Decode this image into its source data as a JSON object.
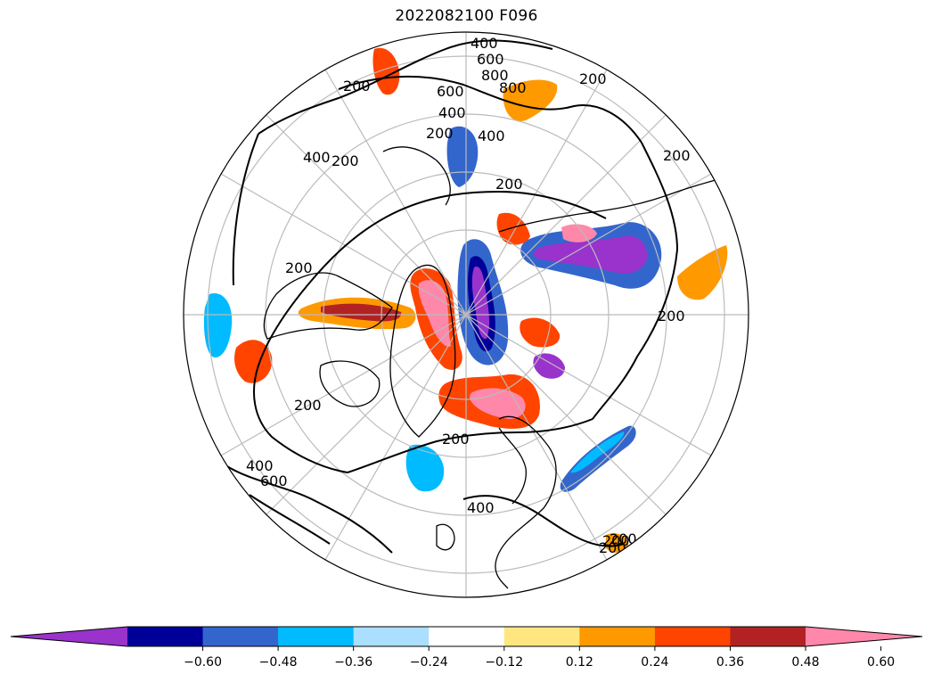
{
  "title": "2022082100 F096",
  "colorbar": {
    "colors": [
      "#9933cc",
      "#000099",
      "#3366cc",
      "#00bbff",
      "#aadfff",
      "#ffffff",
      "#ffe680",
      "#ff9900",
      "#ff4400",
      "#b22222",
      "#ff88aa"
    ],
    "tick_values": [
      "−0.60",
      "−0.48",
      "−0.36",
      "−0.24",
      "−0.12",
      "0.12",
      "0.24",
      "0.36",
      "0.48",
      "0.60"
    ],
    "extend": "both"
  },
  "contour_labels": [
    "400",
    "600",
    "800",
    "800",
    "600",
    "400",
    "200",
    "200",
    "200",
    "400",
    "200",
    "400",
    "200",
    "200",
    "200",
    "200",
    "200",
    "200",
    "200",
    "200",
    "400",
    "600",
    "400",
    "200"
  ]
}
